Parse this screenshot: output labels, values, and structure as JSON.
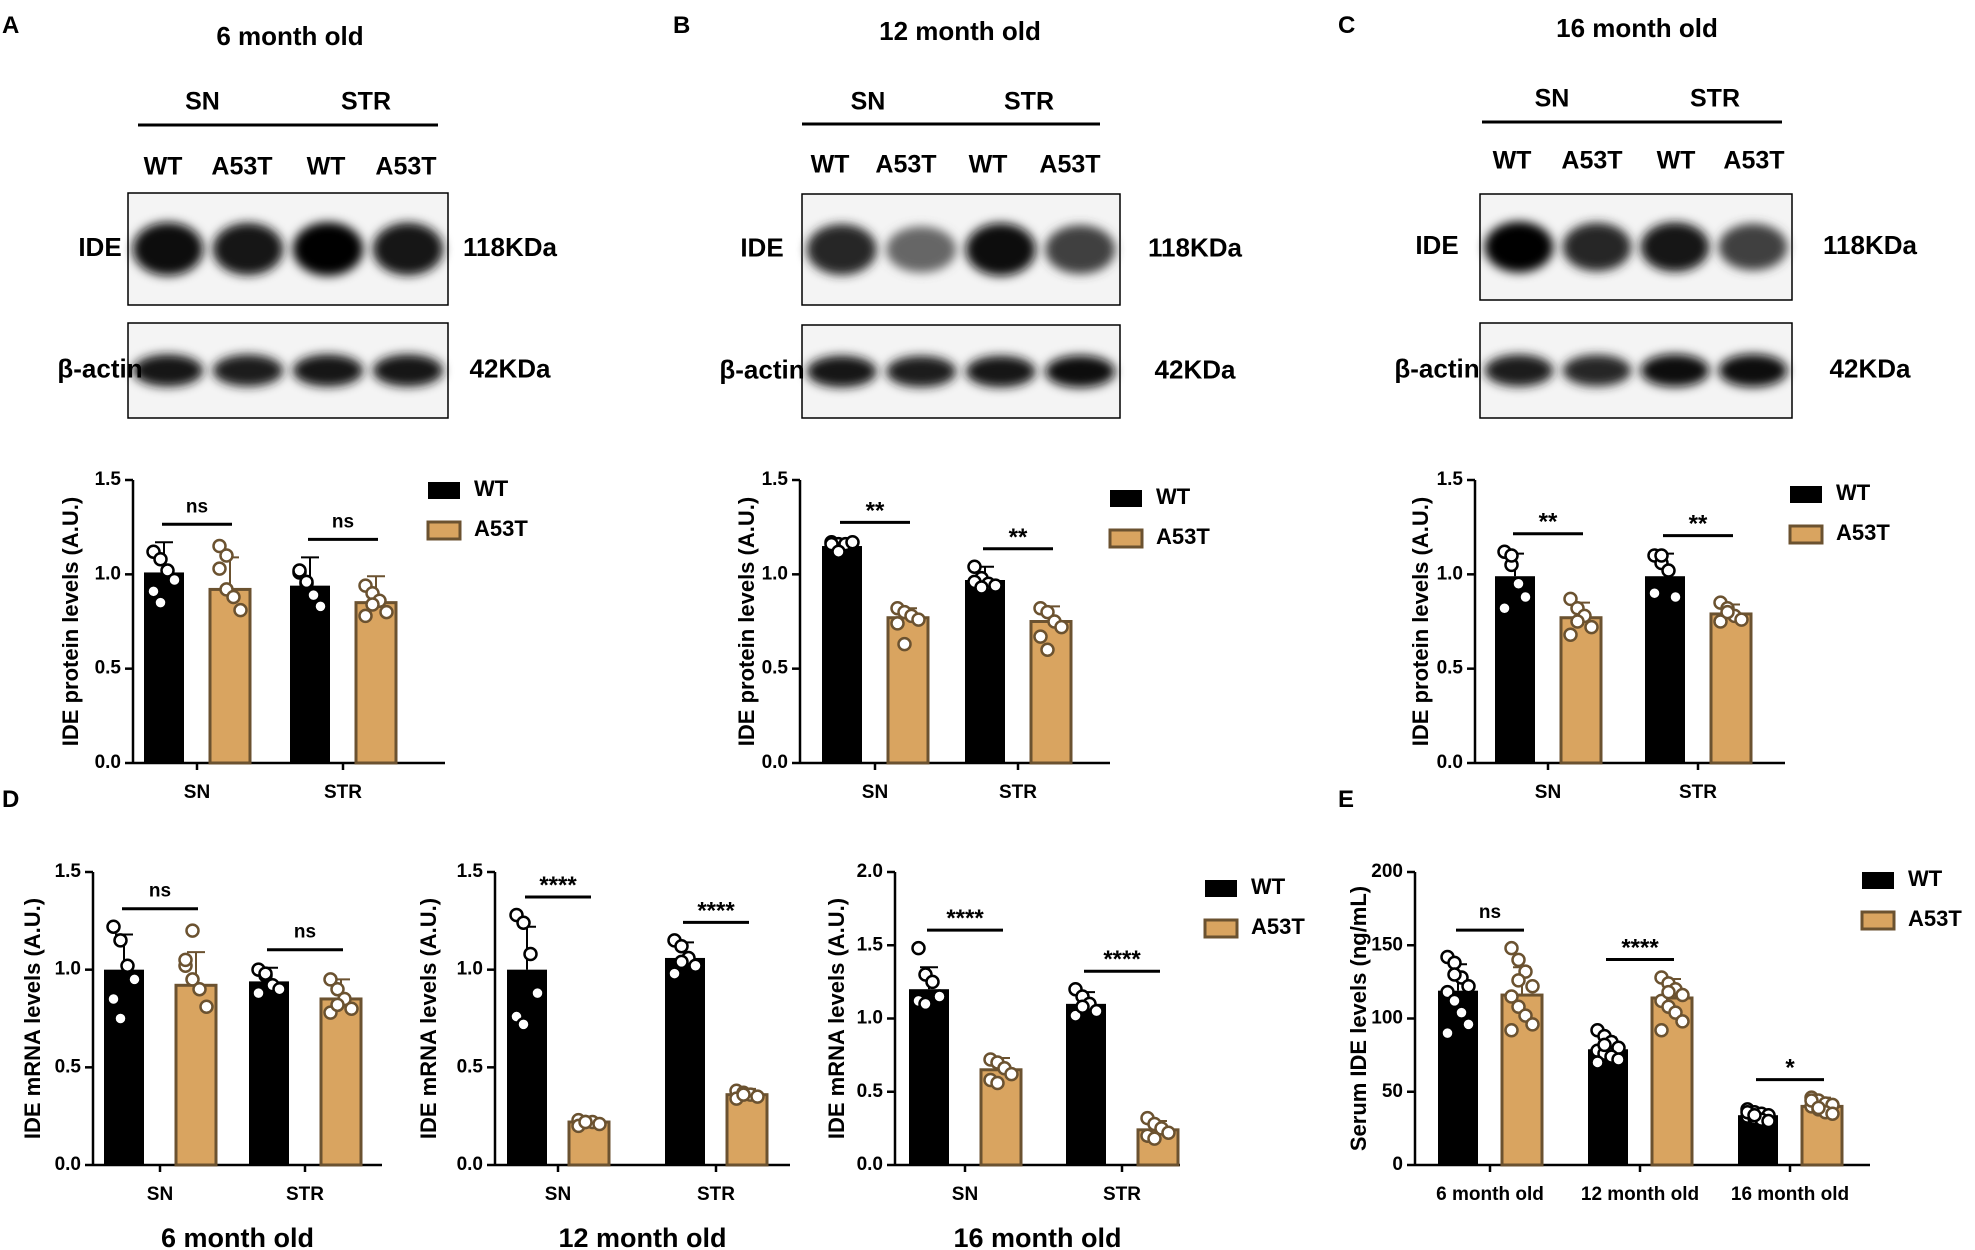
{
  "colors": {
    "wt": "#000000",
    "a53t": "#d9a460",
    "a53t_border": "#6b5230",
    "dot_fill": "#ffffff"
  },
  "blots": [
    {
      "panel": "A",
      "title": "6 month old",
      "groups": [
        "SN",
        "STR"
      ],
      "lanes": [
        "WT",
        "A53T",
        "WT",
        "A53T"
      ],
      "ide_label": "IDE",
      "ide_kda": "118KDa",
      "actin_label": "β-actin",
      "actin_kda": "42KDa",
      "ide_intensity": [
        0.95,
        0.9,
        0.98,
        0.92
      ],
      "actin_intensity": [
        0.9,
        0.88,
        0.9,
        0.9
      ]
    },
    {
      "panel": "B",
      "title": "12 month old",
      "groups": [
        "SN",
        "STR"
      ],
      "lanes": [
        "WT",
        "A53T",
        "WT",
        "A53T"
      ],
      "ide_label": "IDE",
      "ide_kda": "118KDa",
      "actin_label": "β-actin",
      "actin_kda": "42KDa",
      "ide_intensity": [
        0.85,
        0.6,
        0.95,
        0.75
      ],
      "actin_intensity": [
        0.92,
        0.88,
        0.9,
        0.95
      ]
    },
    {
      "panel": "C",
      "title": "16 month old",
      "groups": [
        "SN",
        "STR"
      ],
      "lanes": [
        "WT",
        "A53T",
        "WT",
        "A53T"
      ],
      "ide_label": "IDE",
      "ide_kda": "118KDa",
      "actin_label": "β-actin",
      "actin_kda": "42KDa",
      "ide_intensity": [
        0.98,
        0.85,
        0.9,
        0.75
      ],
      "actin_intensity": [
        0.88,
        0.85,
        0.95,
        0.97
      ]
    }
  ],
  "chart_data": [
    {
      "panel": "A",
      "type": "bar",
      "ylabel": "IDE protein levels  (A.U.)",
      "ylim": [
        0,
        1.5
      ],
      "yticks": [
        "0.0",
        "0.5",
        "1.0",
        "1.5"
      ],
      "categories": [
        "SN",
        "STR"
      ],
      "legend": [
        "WT",
        "A53T"
      ],
      "sig": [
        "ns",
        "ns"
      ],
      "series": [
        {
          "name": "WT",
          "values": [
            1.01,
            0.94
          ],
          "sd": [
            0.16,
            0.15
          ]
        },
        {
          "name": "A53T",
          "values": [
            0.92,
            0.85
          ],
          "sd": [
            0.17,
            0.14
          ]
        }
      ],
      "points": [
        [
          [
            1.12,
            1.08,
            1.02,
            0.97,
            0.91,
            0.85
          ],
          [
            1.03,
            0.92,
            0.88,
            0.81,
            1.15,
            1.1
          ]
        ],
        [
          [
            1.01,
            0.95,
            0.89,
            0.83,
            1.02,
            0.96
          ],
          [
            0.94,
            0.9,
            0.86,
            0.8,
            0.78,
            0.84
          ]
        ]
      ]
    },
    {
      "panel": "B",
      "type": "bar",
      "ylabel": "IDE protein levels  (A.U.)",
      "ylim": [
        0,
        1.5
      ],
      "yticks": [
        "0.0",
        "0.5",
        "1.0",
        "1.5"
      ],
      "categories": [
        "SN",
        "STR"
      ],
      "legend": [
        "WT",
        "A53T"
      ],
      "sig": [
        "**",
        "**"
      ],
      "series": [
        {
          "name": "WT",
          "values": [
            1.15,
            0.97
          ],
          "sd": [
            0.03,
            0.07
          ]
        },
        {
          "name": "A53T",
          "values": [
            0.77,
            0.75
          ],
          "sd": [
            0.05,
            0.08
          ]
        }
      ],
      "points": [
        [
          [
            1.17,
            1.16,
            1.16,
            1.17,
            1.16,
            1.12
          ],
          [
            0.82,
            0.8,
            0.78,
            0.76,
            0.74,
            0.63
          ]
        ],
        [
          [
            1.04,
            0.98,
            0.95,
            0.94,
            0.96,
            0.93
          ],
          [
            0.82,
            0.8,
            0.75,
            0.72,
            0.67,
            0.6
          ]
        ]
      ]
    },
    {
      "panel": "C",
      "type": "bar",
      "ylabel": "IDE protein levels  (A.U.)",
      "ylim": [
        0,
        1.5
      ],
      "yticks": [
        "0.0",
        "0.5",
        "1.0",
        "1.5"
      ],
      "categories": [
        "SN",
        "STR"
      ],
      "legend": [
        "WT",
        "A53T"
      ],
      "sig": [
        "**",
        "**"
      ],
      "series": [
        {
          "name": "WT",
          "values": [
            0.99,
            0.99
          ],
          "sd": [
            0.12,
            0.12
          ]
        },
        {
          "name": "A53T",
          "values": [
            0.77,
            0.79
          ],
          "sd": [
            0.08,
            0.05
          ]
        }
      ],
      "points": [
        [
          [
            1.12,
            1.05,
            0.95,
            0.88,
            0.82,
            1.1
          ],
          [
            0.87,
            0.82,
            0.78,
            0.72,
            0.68,
            0.75
          ]
        ],
        [
          [
            1.1,
            1.06,
            1.02,
            0.88,
            0.9,
            1.1
          ],
          [
            0.85,
            0.82,
            0.78,
            0.76,
            0.75,
            0.8
          ]
        ]
      ]
    },
    {
      "panel": "D",
      "title": "6 month old",
      "type": "bar",
      "ylabel": "IDE mRNA levels  (A.U.)",
      "ylim": [
        0,
        1.5
      ],
      "yticks": [
        "0.0",
        "0.5",
        "1.0",
        "1.5"
      ],
      "categories": [
        "SN",
        "STR"
      ],
      "sig": [
        "ns",
        "ns"
      ],
      "series": [
        {
          "name": "WT",
          "values": [
            1.0,
            0.94
          ],
          "sd": [
            0.18,
            0.07
          ]
        },
        {
          "name": "A53T",
          "values": [
            0.92,
            0.85
          ],
          "sd": [
            0.17,
            0.1
          ]
        }
      ],
      "points": [
        [
          [
            1.22,
            1.15,
            1.02,
            0.95,
            0.85,
            0.75
          ],
          [
            1.02,
            0.95,
            0.9,
            0.81,
            1.05,
            1.2
          ]
        ],
        [
          [
            1.0,
            0.97,
            0.92,
            0.9,
            0.88,
            0.98
          ],
          [
            0.95,
            0.9,
            0.85,
            0.8,
            0.78,
            0.82
          ]
        ]
      ]
    },
    {
      "panel": "D",
      "title": "12 month old",
      "type": "bar",
      "ylabel": "IDE mRNA levels  (A.U.)",
      "ylim": [
        0,
        1.5
      ],
      "yticks": [
        "0.0",
        "0.5",
        "1.0",
        "1.5"
      ],
      "categories": [
        "SN",
        "STR"
      ],
      "sig": [
        "****",
        "****"
      ],
      "series": [
        {
          "name": "WT",
          "values": [
            1.0,
            1.06
          ],
          "sd": [
            0.22,
            0.08
          ]
        },
        {
          "name": "A53T",
          "values": [
            0.22,
            0.36
          ],
          "sd": [
            0.02,
            0.03
          ]
        }
      ],
      "points": [
        [
          [
            1.28,
            1.24,
            1.08,
            0.88,
            0.76,
            0.72
          ],
          [
            0.23,
            0.22,
            0.22,
            0.21,
            0.2,
            0.22
          ]
        ],
        [
          [
            1.15,
            1.12,
            1.06,
            1.02,
            0.98,
            1.04
          ],
          [
            0.38,
            0.37,
            0.36,
            0.35,
            0.34,
            0.36
          ]
        ]
      ]
    },
    {
      "panel": "D",
      "title": "16 month old",
      "type": "bar",
      "ylabel": "IDE mRNA levels  (A.U.)",
      "ylim": [
        0,
        2.0
      ],
      "yticks": [
        "0.0",
        "0.5",
        "1.0",
        "1.5",
        "2.0"
      ],
      "categories": [
        "SN",
        "STR"
      ],
      "legend": [
        "WT",
        "A53T"
      ],
      "sig": [
        "****",
        "****"
      ],
      "series": [
        {
          "name": "WT",
          "values": [
            1.2,
            1.1
          ],
          "sd": [
            0.15,
            0.08
          ]
        },
        {
          "name": "A53T",
          "values": [
            0.65,
            0.24
          ],
          "sd": [
            0.08,
            0.06
          ]
        }
      ],
      "points": [
        [
          [
            1.48,
            1.3,
            1.25,
            1.15,
            1.12,
            1.1
          ],
          [
            0.72,
            0.7,
            0.66,
            0.62,
            0.58,
            0.56
          ]
        ],
        [
          [
            1.2,
            1.15,
            1.1,
            1.05,
            1.02,
            1.08
          ],
          [
            0.32,
            0.28,
            0.25,
            0.22,
            0.2,
            0.18
          ]
        ]
      ]
    },
    {
      "panel": "E",
      "type": "bar",
      "ylabel": "Serum IDE levels (ng/mL)",
      "ylim": [
        0,
        200
      ],
      "yticks": [
        "0",
        "50",
        "100",
        "150",
        "200"
      ],
      "categories": [
        "6 month old",
        "12 month old",
        "16 month old"
      ],
      "legend": [
        "WT",
        "A53T"
      ],
      "sig": [
        "ns",
        "****",
        "*"
      ],
      "series": [
        {
          "name": "WT",
          "values": [
            119,
            79,
            34
          ],
          "sd": [
            18,
            8,
            4
          ]
        },
        {
          "name": "A53T",
          "values": [
            116,
            114,
            40
          ],
          "sd": [
            19,
            13,
            6
          ]
        }
      ],
      "points": [
        [
          [
            142,
            138,
            128,
            122,
            118,
            112,
            104,
            96,
            90,
            130
          ],
          [
            148,
            140,
            132,
            122,
            115,
            108,
            102,
            96,
            92,
            126
          ]
        ],
        [
          [
            92,
            88,
            84,
            80,
            78,
            76,
            74,
            72,
            70,
            82
          ],
          [
            128,
            124,
            120,
            116,
            112,
            108,
            104,
            98,
            92,
            118
          ]
        ],
        [
          [
            38,
            36,
            35,
            34,
            33,
            32,
            31,
            30,
            36,
            34
          ],
          [
            46,
            44,
            42,
            41,
            40,
            38,
            36,
            35,
            44,
            39
          ]
        ]
      ]
    }
  ]
}
